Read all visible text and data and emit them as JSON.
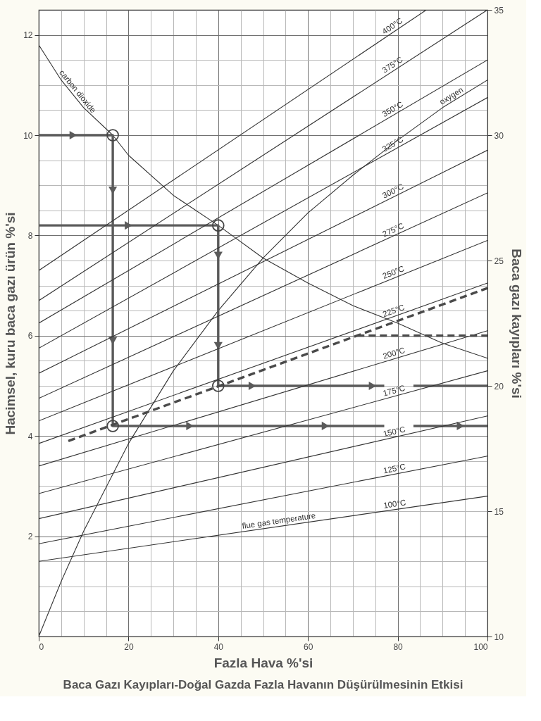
{
  "chart_data": {
    "type": "line",
    "title": "Baca Gazı Kayıpları-Doğal Gazda Fazla Havanın Düşürülmesinin Etkisi",
    "xlabel": "Fazla Hava %'si",
    "ylabel": "Hacimsel, kuru baca gazı ürün %'si",
    "y2label": "Baca gazı kayıpları %'si",
    "xlim": [
      0,
      100
    ],
    "xticks": [
      0,
      {
        "value": 5,
        "label": null
      },
      {
        "value": 10,
        "label": null
      },
      {
        "value": 15,
        "label": null
      },
      20,
      {
        "value": 25,
        "label": null
      },
      {
        "value": 30,
        "label": null
      },
      {
        "value": 35,
        "label": null
      },
      40,
      {
        "value": 45,
        "label": null
      },
      {
        "value": 50,
        "label": null
      },
      {
        "value": 55,
        "label": null
      },
      60,
      {
        "value": 65,
        "label": null
      },
      {
        "value": 70,
        "label": null
      },
      {
        "value": 75,
        "label": null
      },
      80,
      {
        "value": 85,
        "label": null
      },
      {
        "value": 90,
        "label": null
      },
      {
        "value": 95,
        "label": null
      },
      100
    ],
    "ylim": [
      0,
      12.5
    ],
    "yticks": [
      {
        "value": 0.5,
        "label": null
      },
      {
        "value": 1,
        "label": null
      },
      {
        "value": 1.5,
        "label": null
      },
      2,
      {
        "value": 2.5,
        "label": null
      },
      {
        "value": 3,
        "label": null
      },
      {
        "value": 3.5,
        "label": null
      },
      4,
      {
        "value": 4.5,
        "label": null
      },
      {
        "value": 5,
        "label": null
      },
      {
        "value": 5.5,
        "label": null
      },
      6,
      {
        "value": 6.5,
        "label": null
      },
      {
        "value": 7,
        "label": null
      },
      {
        "value": 7.5,
        "label": null
      },
      8,
      {
        "value": 8.5,
        "label": null
      },
      {
        "value": 9,
        "label": null
      },
      {
        "value": 9.5,
        "label": null
      },
      10,
      {
        "value": 10.5,
        "label": null
      },
      {
        "value": 11,
        "label": null
      },
      {
        "value": 11.5,
        "label": null
      },
      12
    ],
    "y2lim": [
      10,
      35
    ],
    "y2ticks": [
      10,
      15,
      20,
      25,
      30,
      35
    ],
    "grid": true,
    "annotations": [
      {
        "text": "flue gas temperature",
        "x": 53.7,
        "y": 2.2
      }
    ],
    "series": [
      {
        "name": "carbon dioxide",
        "color": "#333333",
        "x": [
          0,
          5,
          10,
          16.5,
          20,
          30,
          40,
          50,
          60,
          70,
          80,
          90,
          100
        ],
        "values": [
          11.8,
          11.1,
          10.55,
          10.0,
          9.6,
          8.8,
          8.2,
          7.55,
          7.05,
          6.6,
          6.25,
          5.85,
          5.55
        ]
      },
      {
        "name": "oxygen",
        "color": "#333333",
        "x": [
          0,
          5,
          10,
          20,
          30,
          40,
          50,
          60,
          70,
          80,
          90,
          100
        ],
        "values": [
          0,
          1.1,
          2.1,
          3.85,
          5.3,
          6.5,
          7.55,
          8.45,
          9.2,
          9.9,
          10.55,
          11.1
        ]
      },
      {
        "name": "400°C",
        "axis": "y2",
        "color": "#333333",
        "x": [
          0,
          86.4
        ],
        "values": [
          24.6,
          35
        ]
      },
      {
        "name": "375°C",
        "axis": "y2",
        "color": "#333333",
        "x": [
          0,
          100
        ],
        "values": [
          23.4,
          35
        ]
      },
      {
        "name": "350°C",
        "axis": "y2",
        "color": "#333333",
        "x": [
          0,
          100
        ],
        "values": [
          22.5,
          33.0
        ]
      },
      {
        "name": "325°C",
        "axis": "y2",
        "color": "#333333",
        "x": [
          0,
          100
        ],
        "values": [
          21.5,
          31.5
        ]
      },
      {
        "name": "300°C",
        "axis": "y2",
        "color": "#333333",
        "x": [
          0,
          100
        ],
        "values": [
          20.5,
          29.4
        ]
      },
      {
        "name": "275°C",
        "axis": "y2",
        "color": "#333333",
        "x": [
          0,
          100
        ],
        "values": [
          19.5,
          27.7
        ]
      },
      {
        "name": "250°C",
        "axis": "y2",
        "color": "#333333",
        "x": [
          0,
          100
        ],
        "values": [
          18.6,
          25.8
        ]
      },
      {
        "name": "225°C",
        "axis": "y2",
        "color": "#333333",
        "x": [
          0,
          100
        ],
        "values": [
          17.7,
          24.1
        ]
      },
      {
        "name": "200°C",
        "axis": "y2",
        "color": "#333333",
        "x": [
          0,
          100
        ],
        "values": [
          16.8,
          22.2
        ]
      },
      {
        "name": "175°C",
        "axis": "y2",
        "color": "#333333",
        "x": [
          0,
          100
        ],
        "values": [
          15.7,
          20.6
        ]
      },
      {
        "name": "150°C",
        "axis": "y2",
        "color": "#333333",
        "x": [
          0,
          100
        ],
        "values": [
          14.7,
          18.8
        ]
      },
      {
        "name": "125°C",
        "axis": "y2",
        "color": "#333333",
        "x": [
          0,
          100
        ],
        "values": [
          13.7,
          17.2
        ]
      },
      {
        "name": "100°C",
        "axis": "y2",
        "color": "#333333",
        "x": [
          0,
          100
        ],
        "values": [
          13.0,
          15.6
        ]
      },
      {
        "axis": "y2",
        "color": "#4a4a4a",
        "line_style": "dashed",
        "x": [
          6.6,
          100
        ],
        "values": [
          17.8,
          23.9
        ]
      },
      {
        "axis": "y2",
        "color": "#4a4a4a",
        "line_style": "dashed",
        "x": [
          71,
          100
        ],
        "values": [
          22.0,
          22.0
        ]
      },
      {
        "color": "#5a5a5a",
        "x": [
          0,
          16.5,
          16.5,
          77,
          80,
          83.5,
          100
        ],
        "values": [
          10,
          10,
          4.2,
          4.2,
          null,
          4.2,
          4.2
        ]
      },
      {
        "color": "#5a5a5a",
        "x": [
          0,
          40,
          40,
          77,
          80,
          83.5,
          100
        ],
        "values": [
          8.2,
          8.2,
          5.0,
          5.0,
          null,
          5.0,
          5.0
        ]
      },
      {
        "type": "scatter",
        "marker": "circle",
        "color": "#444444",
        "x": [
          16.5,
          40,
          40,
          16.5
        ],
        "values": [
          10,
          8.2,
          5.0,
          4.2
        ]
      },
      {
        "type": "scatter",
        "marker": "triangle",
        "color": "#5a5a5a",
        "x": [
          7.7,
          16.5,
          16.5,
          33.7,
          63.9,
          94.0,
          20.0,
          40,
          40,
          47.6,
          74.4
        ],
        "values": [
          10,
          8.9,
          5.9,
          4.2,
          4.2,
          4.2,
          8.2,
          7.6,
          5.8,
          5.0,
          5.0
        ]
      }
    ]
  }
}
